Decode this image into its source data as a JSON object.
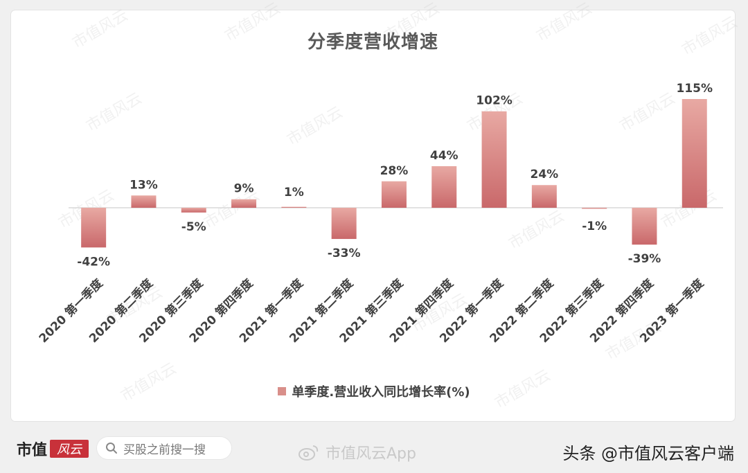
{
  "chart_data": {
    "type": "bar",
    "title": "分季度营收增速",
    "categories": [
      "2020 第一季度",
      "2020 第二季度",
      "2020 第三季度",
      "2020 第四季度",
      "2021 第一季度",
      "2021 第二季度",
      "2021 第三季度",
      "2021 第四季度",
      "2022 第一季度",
      "2022 第二季度",
      "2022 第三季度",
      "2022 第四季度",
      "2023 第一季度"
    ],
    "series": [
      {
        "name": "单季度.营业收入同比增长率(%)",
        "values": [
          -42,
          13,
          -5,
          9,
          1,
          -33,
          28,
          44,
          102,
          24,
          -1,
          -39,
          115
        ],
        "labels": [
          "-42%",
          "13%",
          "-5%",
          "9%",
          "1%",
          "-33%",
          "28%",
          "44%",
          "102%",
          "24%",
          "-1%",
          "-39%",
          "115%"
        ]
      }
    ],
    "legend_position": "bottom",
    "grid": false,
    "colors": {
      "bar_top": "#e8a9a3",
      "bar_bottom": "#c9686a",
      "label": "#404040",
      "axis": "#d9d9d9"
    }
  },
  "footer": {
    "brand": "市值",
    "brand_logo": "风云",
    "search_placeholder": "买股之前搜一搜",
    "weibo_text": "市值风云App",
    "toutiao_text": "头条 @市值风云客户端"
  },
  "watermark_text": "市值风云"
}
